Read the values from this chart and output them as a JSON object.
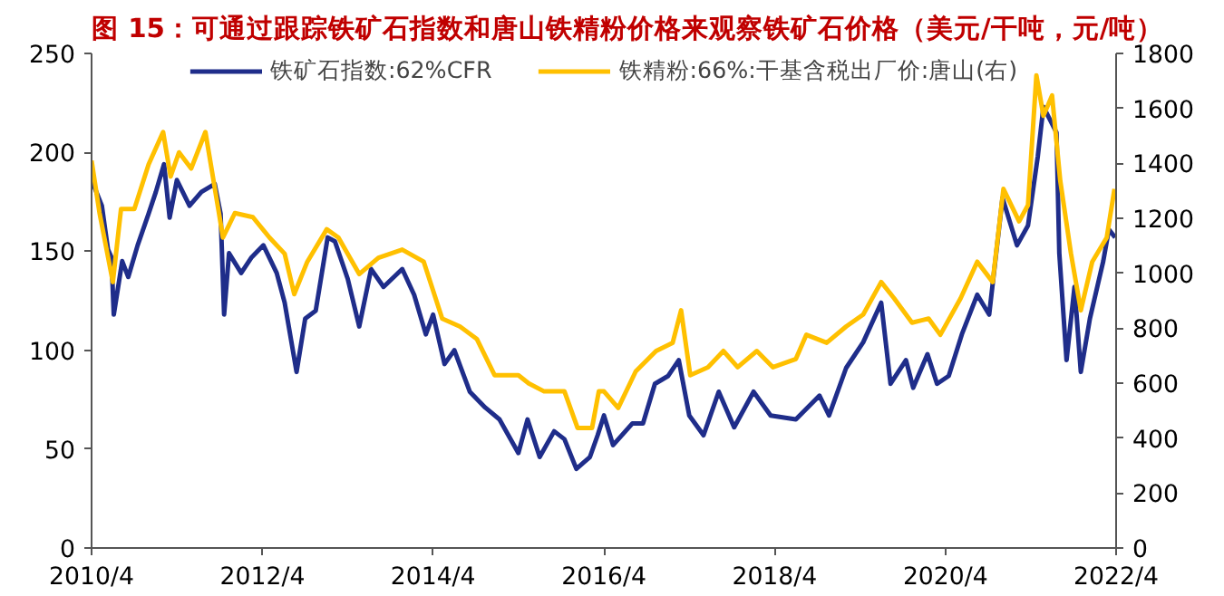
{
  "chart_data": {
    "type": "line",
    "title": "图 15：可通过跟踪铁矿石指数和唐山铁精粉价格来观察铁矿石价格（美元/干吨，元/吨）",
    "xlim": [
      "2010-04",
      "2022-04"
    ],
    "xticks": [
      {
        "value": "2010-04",
        "label": "2010/4"
      },
      {
        "value": "2012-04",
        "label": "2012/4"
      },
      {
        "value": "2014-04",
        "label": "2014/4"
      },
      {
        "value": "2016-04",
        "label": "2016/4"
      },
      {
        "value": "2018-04",
        "label": "2018/4"
      },
      {
        "value": "2020-04",
        "label": "2020/4"
      },
      {
        "value": "2022-04",
        "label": "2022/4"
      }
    ],
    "ylim": [
      0,
      250
    ],
    "yticks": [
      0,
      50,
      100,
      150,
      200,
      250
    ],
    "y2lim": [
      0,
      1800
    ],
    "y2ticks": [
      0,
      200,
      400,
      600,
      800,
      1000,
      1200,
      1400,
      1600,
      1800
    ],
    "grid": false,
    "legend": "top",
    "marker": "none",
    "line_style": "solid",
    "series": [
      {
        "name": "铁矿石指数:62%CFR",
        "color": "#1f2d8a",
        "x": [
          "2010-04-01",
          "2010-05-15",
          "2010-06-10",
          "2010-06-25",
          "2010-07-05",
          "2010-08-10",
          "2010-09-05",
          "2010-10-15",
          "2010-12-01",
          "2011-01-01",
          "2011-02-05",
          "2011-03-01",
          "2011-04-01",
          "2011-05-25",
          "2011-07-15",
          "2011-09-10",
          "2011-10-05",
          "2011-10-20",
          "2011-11-10",
          "2012-01-01",
          "2012-02-15",
          "2012-04-05",
          "2012-06-01",
          "2012-07-05",
          "2012-08-25",
          "2012-10-01",
          "2012-11-15",
          "2013-01-05",
          "2013-02-05",
          "2013-04-01",
          "2013-05-20",
          "2013-07-10",
          "2013-09-01",
          "2013-11-20",
          "2014-01-10",
          "2014-03-01",
          "2014-04-01",
          "2014-05-20",
          "2014-07-01",
          "2014-09-05",
          "2014-11-10",
          "2015-01-10",
          "2015-04-01",
          "2015-05-10",
          "2015-07-01",
          "2015-09-01",
          "2015-10-15",
          "2015-12-05",
          "2016-02-01",
          "2016-03-05",
          "2016-04-01",
          "2016-05-10",
          "2016-08-01",
          "2016-09-15",
          "2016-11-05",
          "2017-01-01",
          "2017-02-15",
          "2017-04-01",
          "2017-06-01",
          "2017-08-05",
          "2017-10-10",
          "2018-01-01",
          "2018-03-15",
          "2018-07-01",
          "2018-10-10",
          "2018-11-20",
          "2019-02-01",
          "2019-04-15",
          "2019-07-01",
          "2019-08-10",
          "2019-10-15",
          "2019-11-15",
          "2020-01-15",
          "2020-02-25",
          "2020-04-15",
          "2020-06-10",
          "2020-08-15",
          "2020-10-05",
          "2020-12-01",
          "2021-02-01",
          "2021-03-20",
          "2021-05-01",
          "2021-05-25",
          "2021-07-20",
          "2021-08-01",
          "2021-09-01",
          "2021-10-05",
          "2021-11-01",
          "2021-12-10",
          "2022-02-05",
          "2022-03-01",
          "2022-03-28"
        ],
        "values": [
          186,
          173,
          151,
          147,
          118,
          145,
          137,
          153,
          169,
          180,
          194,
          167,
          186,
          173,
          180,
          184,
          169,
          118,
          149,
          139,
          147,
          153,
          139,
          124,
          89,
          116,
          120,
          157,
          155,
          136,
          112,
          141,
          132,
          141,
          128,
          108,
          118,
          93,
          100,
          79,
          71,
          65,
          48,
          65,
          46,
          59,
          55,
          40,
          46,
          57,
          67,
          52,
          63,
          63,
          83,
          87,
          95,
          67,
          57,
          79,
          61,
          79,
          67,
          65,
          77,
          67,
          91,
          104,
          124,
          83,
          95,
          81,
          98,
          83,
          87,
          108,
          128,
          118,
          177,
          153,
          163,
          198,
          223,
          210,
          149,
          95,
          132,
          89,
          116,
          145,
          161,
          157
        ]
      },
      {
        "name": "铁精粉:66%:干基含税出厂价:唐山(右)",
        "color": "#ffc000",
        "axis": "y2",
        "x": [
          "2010-04-01",
          "2010-05-05",
          "2010-07-01",
          "2010-08-05",
          "2010-10-01",
          "2010-12-01",
          "2011-02-01",
          "2011-03-05",
          "2011-04-10",
          "2011-06-01",
          "2011-08-01",
          "2011-09-25",
          "2011-10-15",
          "2011-12-05",
          "2012-02-20",
          "2012-05-01",
          "2012-07-05",
          "2012-08-15",
          "2012-10-10",
          "2013-01-01",
          "2013-02-20",
          "2013-05-20",
          "2013-08-10",
          "2013-11-20",
          "2014-02-20",
          "2014-05-10",
          "2014-07-25",
          "2014-10-05",
          "2014-12-20",
          "2015-04-01",
          "2015-05-15",
          "2015-07-20",
          "2015-10-15",
          "2015-12-10",
          "2016-02-10",
          "2016-03-10",
          "2016-04-01",
          "2016-06-01",
          "2016-08-15",
          "2016-11-10",
          "2017-01-20",
          "2017-02-25",
          "2017-04-05",
          "2017-06-20",
          "2017-08-25",
          "2017-10-25",
          "2018-01-15",
          "2018-03-25",
          "2018-07-01",
          "2018-08-15",
          "2018-11-10",
          "2019-02-01",
          "2019-04-15",
          "2019-07-01",
          "2019-08-25",
          "2019-11-10",
          "2020-01-20",
          "2020-03-10",
          "2020-06-05",
          "2020-08-15",
          "2020-10-20",
          "2020-12-05",
          "2021-02-10",
          "2021-03-20",
          "2021-04-25",
          "2021-05-25",
          "2021-07-01",
          "2021-08-05",
          "2021-09-20",
          "2021-11-01",
          "2021-12-20",
          "2022-02-20",
          "2022-03-25"
        ],
        "values": [
          1410,
          1220,
          968,
          1234,
          1234,
          1396,
          1514,
          1352,
          1440,
          1381,
          1514,
          1234,
          1130,
          1219,
          1204,
          1130,
          1071,
          924,
          1042,
          1160,
          1130,
          997,
          1056,
          1086,
          1042,
          835,
          806,
          761,
          629,
          629,
          599,
          570,
          570,
          437,
          437,
          570,
          570,
          510,
          643,
          717,
          747,
          865,
          629,
          658,
          717,
          658,
          717,
          658,
          688,
          776,
          747,
          806,
          850,
          968,
          909,
          820,
          835,
          776,
          909,
          1042,
          968,
          1307,
          1189,
          1248,
          1720,
          1573,
          1647,
          1337,
          1071,
          865,
          1042,
          1130,
          1307
        ]
      }
    ]
  }
}
